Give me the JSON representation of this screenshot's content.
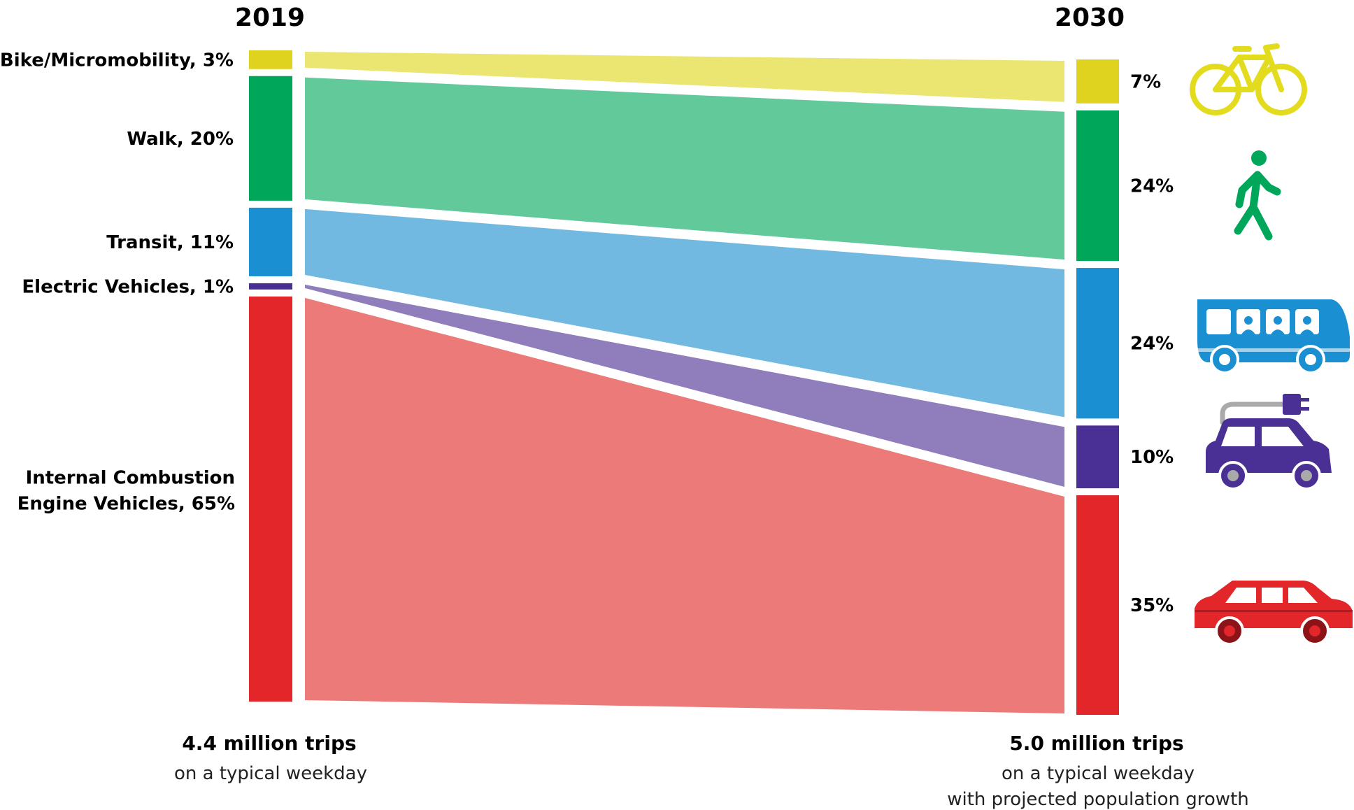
{
  "chart_data": {
    "type": "sankey",
    "title": "",
    "from_year": "2019",
    "to_year": "2030",
    "modes": [
      {
        "key": "bike",
        "label": "Bike/Micromobility, 3%",
        "from": 3,
        "to": 7,
        "to_label": "7%",
        "bar": "#e0d320",
        "flow": "#ebe672",
        "icon": "bicycle-icon"
      },
      {
        "key": "walk",
        "label": "Walk, 20%",
        "from": 20,
        "to": 24,
        "to_label": "24%",
        "bar": "#00a65a",
        "flow": "#62c99a",
        "icon": "walking-person-icon"
      },
      {
        "key": "transit",
        "label": "Transit, 11%",
        "from": 11,
        "to": 24,
        "to_label": "24%",
        "bar": "#1a8fd1",
        "flow": "#72b9e1",
        "icon": "bus-icon"
      },
      {
        "key": "ev",
        "label": "Electric Vehicles, 1%",
        "from": 1,
        "to": 10,
        "to_label": "10%",
        "bar": "#4a2f95",
        "flow": "#8f7ebb",
        "icon": "electric-car-icon"
      },
      {
        "key": "ice",
        "label": "Internal Combustion Engine Vehicles, 65%",
        "label_lines": [
          "Internal Combustion",
          "Engine Vehicles, 65%"
        ],
        "from": 65,
        "to": 35,
        "to_label": "35%",
        "bar": "#e2262a",
        "flow": "#ec7a78",
        "icon": "car-icon"
      }
    ],
    "totals": {
      "from": {
        "value": "4.4 million trips",
        "lines": [
          "on a typical weekday"
        ]
      },
      "to": {
        "value": "5.0 million trips",
        "lines": [
          "on a typical weekday",
          "with projected population growth"
        ]
      }
    }
  }
}
